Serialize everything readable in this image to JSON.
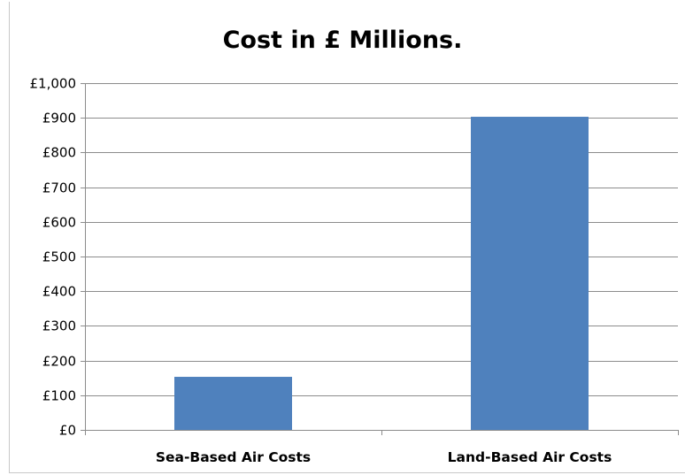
{
  "chart_data": {
    "type": "bar",
    "title": "Cost in £ Millions.",
    "categories": [
      "Sea-Based Air Costs",
      "Land-Based Air Costs"
    ],
    "values": [
      153,
      903
    ],
    "ylim": [
      0,
      1000
    ],
    "yticks": [
      0,
      100,
      200,
      300,
      400,
      500,
      600,
      700,
      800,
      900,
      1000
    ],
    "ytick_labels": [
      "£0",
      "£100",
      "£200",
      "£300",
      "£400",
      "£500",
      "£600",
      "£700",
      "£800",
      "£900",
      "£1,000"
    ],
    "xlabel": "",
    "ylabel": "",
    "grid": true,
    "legend": "none",
    "bar_color": "#4f81bd",
    "grid_color": "#8c8c8c"
  }
}
